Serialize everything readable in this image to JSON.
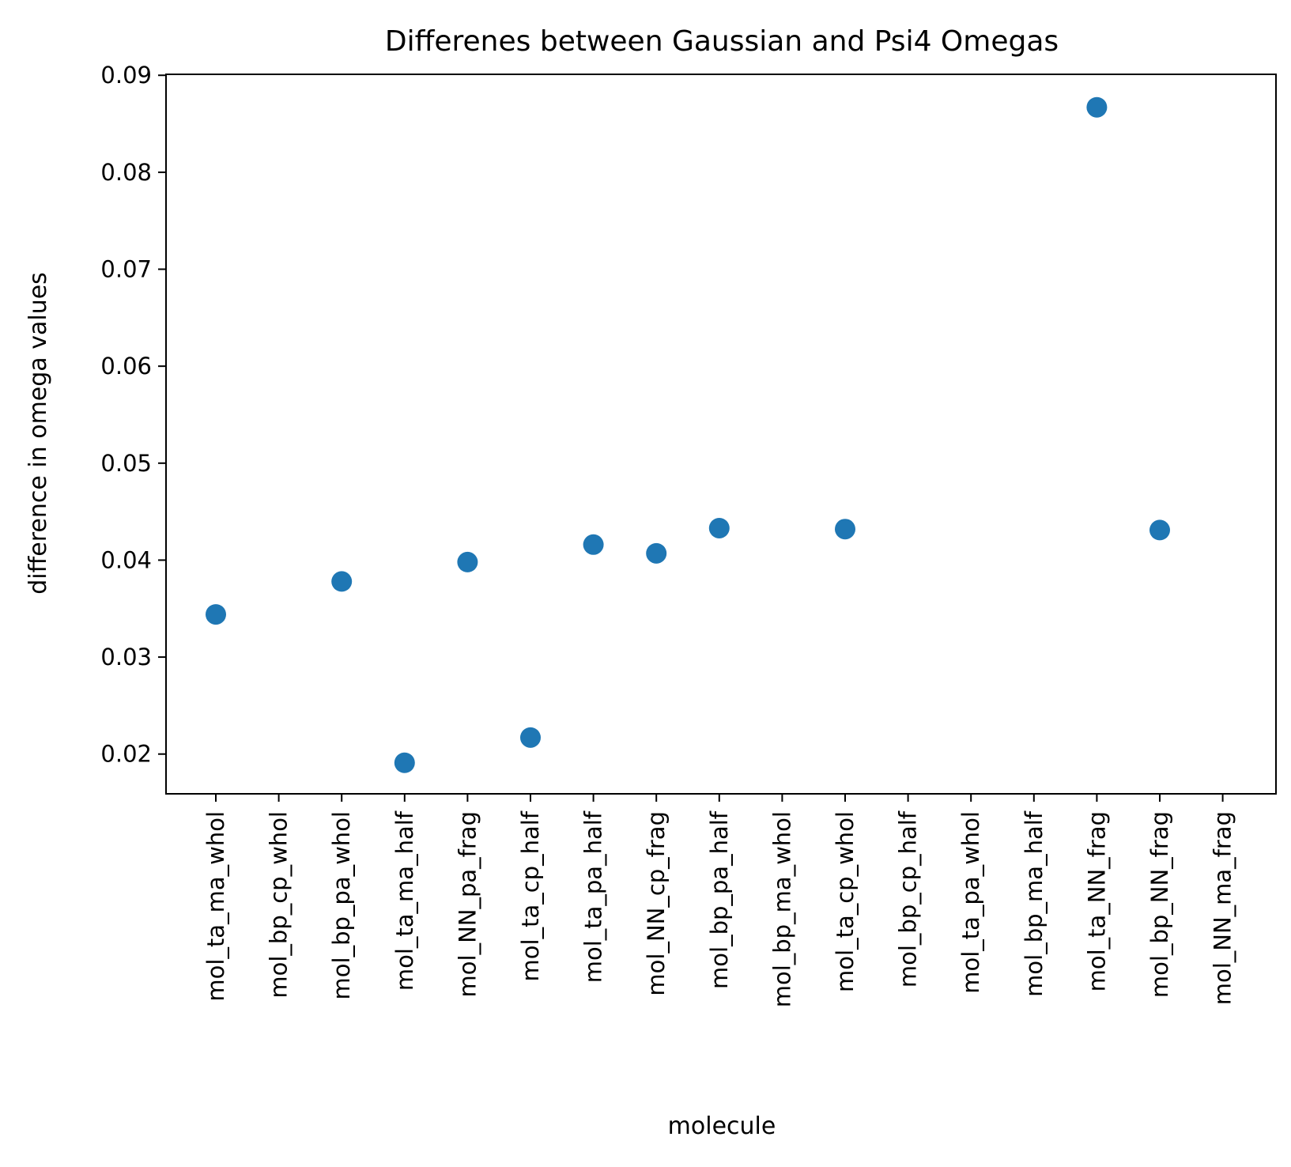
{
  "chart_data": {
    "type": "scatter",
    "title": "Differenes between Gaussian and Psi4 Omegas",
    "xlabel": "molecule",
    "ylabel": "difference in omega values",
    "categories": [
      "mol_ta_ma_whol",
      "mol_bp_cp_whol",
      "mol_bp_pa_whol",
      "mol_ta_ma_half",
      "mol_NN_pa_frag",
      "mol_ta_cp_half",
      "mol_ta_pa_half",
      "mol_NN_cp_frag",
      "mol_bp_pa_half",
      "mol_bp_ma_whol",
      "mol_ta_cp_whol",
      "mol_bp_cp_half",
      "mol_ta_pa_whol",
      "mol_bp_ma_half",
      "mol_ta_NN_frag",
      "mol_bp_NN_frag",
      "mol_NN_ma_frag"
    ],
    "series": [
      {
        "color": "#1f77b4",
        "points": [
          {
            "x": "mol_ta_ma_whol",
            "y": 0.0344
          },
          {
            "x": "mol_bp_pa_whol",
            "y": 0.0378
          },
          {
            "x": "mol_ta_ma_half",
            "y": 0.0191
          },
          {
            "x": "mol_NN_pa_frag",
            "y": 0.0398
          },
          {
            "x": "mol_ta_cp_half",
            "y": 0.0217
          },
          {
            "x": "mol_ta_pa_half",
            "y": 0.0416
          },
          {
            "x": "mol_NN_cp_frag",
            "y": 0.0407
          },
          {
            "x": "mol_bp_pa_half",
            "y": 0.0433
          },
          {
            "x": "mol_ta_cp_whol",
            "y": 0.0432
          },
          {
            "x": "mol_ta_NN_frag",
            "y": 0.0867
          },
          {
            "x": "mol_bp_NN_frag",
            "y": 0.0431
          }
        ]
      }
    ],
    "yticks": [
      "0.02",
      "0.03",
      "0.04",
      "0.05",
      "0.06",
      "0.07",
      "0.08",
      "0.09"
    ],
    "ylim": [
      0.0159,
      0.0901
    ],
    "grid": false,
    "legend": "none"
  }
}
